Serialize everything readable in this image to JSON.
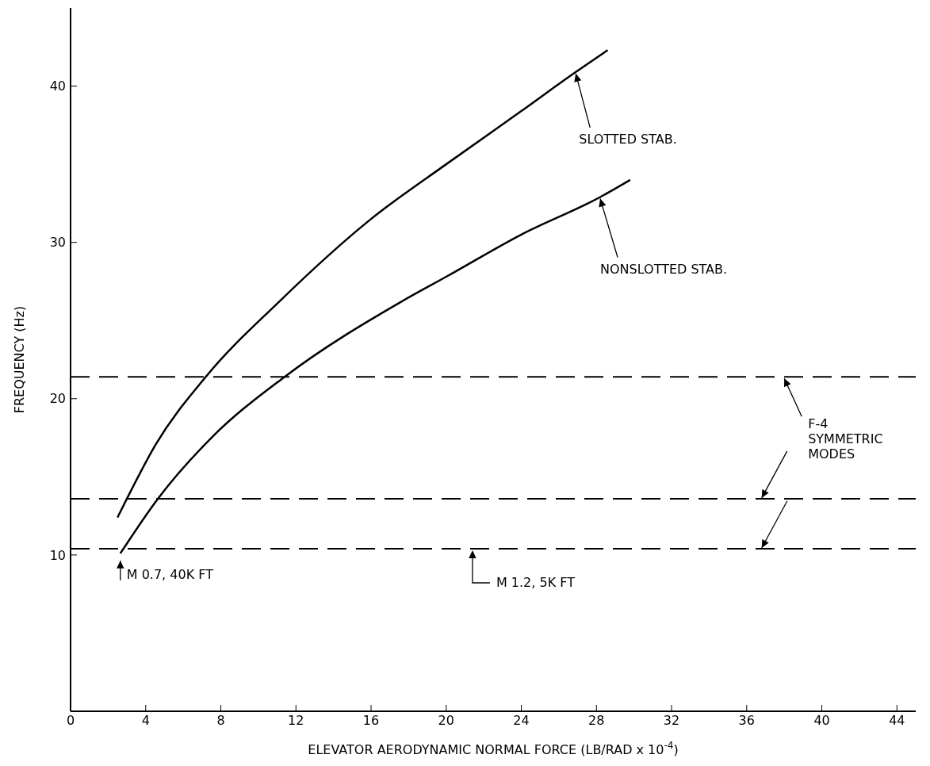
{
  "chart_data": {
    "type": "line",
    "xlabel": "ELEVATOR AERODYNAMIC NORMAL FORCE (LB/RAD x 10$^{-4}$)",
    "ylabel": "FREQUENCY (Hz)",
    "xlim": [
      0,
      45
    ],
    "xticks": [
      0,
      4,
      8,
      12,
      16,
      20,
      24,
      28,
      32,
      36,
      40,
      44
    ],
    "ylim": [
      0,
      45
    ],
    "yticks": [
      10,
      20,
      30,
      40
    ],
    "series": [
      {
        "color": "#000000",
        "x": [
          2.5,
          3,
          4.55,
          7.2,
          11.1,
          16,
          20,
          24,
          26.9,
          28.6
        ],
        "values": [
          12.4,
          13.6,
          17.1,
          21.4,
          26.2,
          31.5,
          35,
          38.4,
          40.9,
          42.3
        ]
      },
      {
        "color": "#000000",
        "x": [
          2.65,
          4.65,
          7.5,
          11.4,
          17.6,
          20,
          24,
          28.2,
          29.8
        ],
        "values": [
          10.1,
          13.6,
          17.5,
          21.4,
          26.2,
          27.8,
          30.5,
          32.9,
          34
        ]
      }
    ],
    "ref_lines": [
      {
        "axis": "y",
        "value": 21.4,
        "color": "#000000",
        "line_style": "dashed"
      },
      {
        "axis": "y",
        "value": 13.6,
        "color": "#000000",
        "line_style": "dashed"
      },
      {
        "axis": "y",
        "value": 10.4,
        "color": "#000000",
        "line_style": "dashed"
      }
    ],
    "annotations": [
      {
        "text": "SLOTTED STAB.",
        "x": 26.9,
        "y": 40.9
      },
      {
        "text": "NONSLOTTED STAB.",
        "x": 28.2,
        "y": 32.9
      },
      {
        "text": "F-4 SYMMETRIC MODES",
        "x": 38,
        "y": 21.4
      },
      {
        "text": "M 0.7, 40K FT",
        "x": 2.65,
        "y": 10.1
      },
      {
        "text": "M 1.2, 5K FT",
        "x": 21.4,
        "y": 10.4
      }
    ]
  }
}
